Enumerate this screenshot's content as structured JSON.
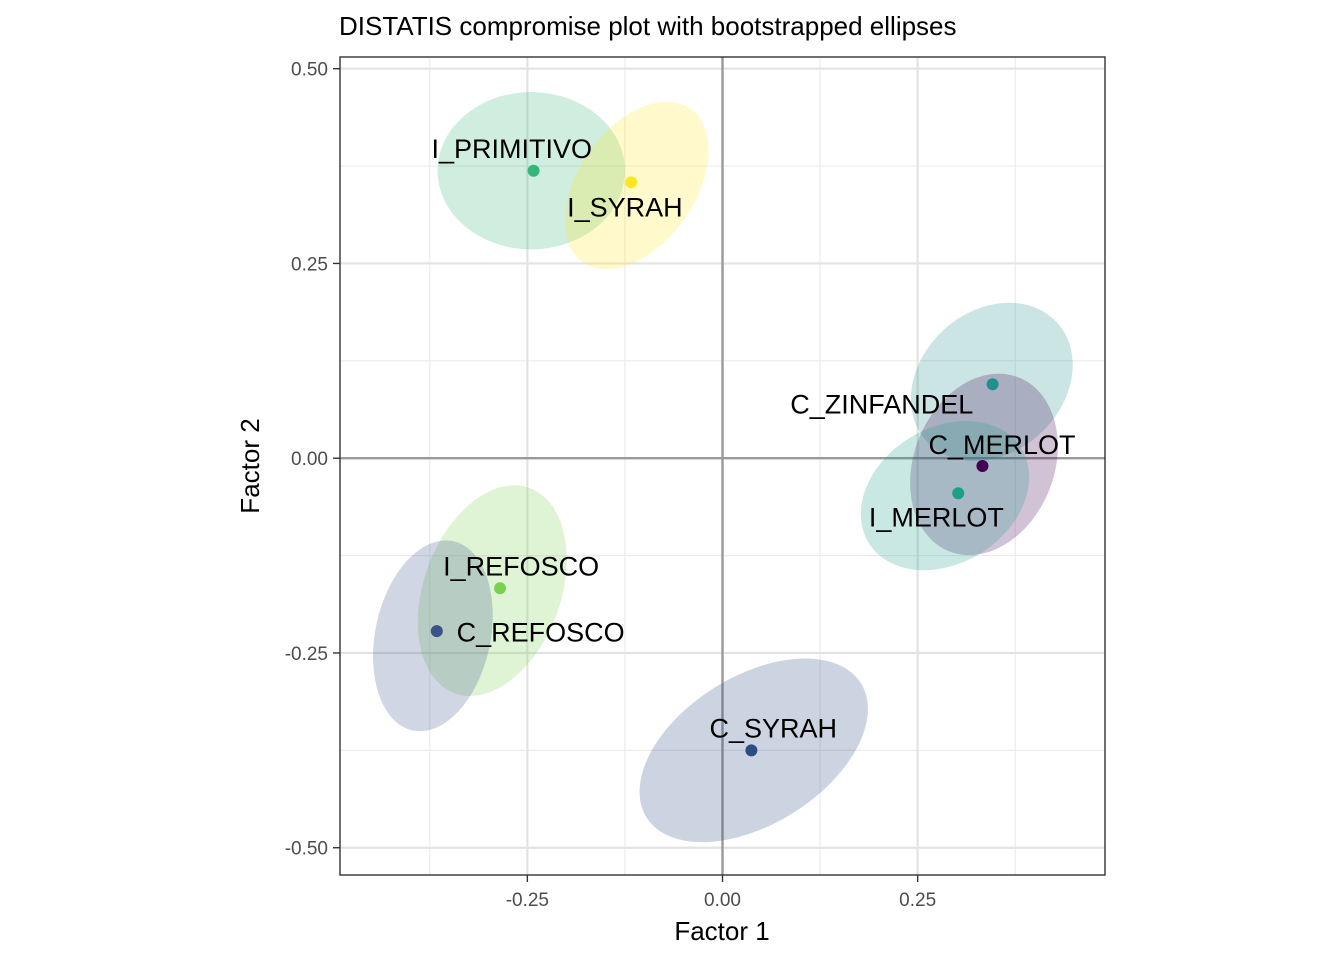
{
  "chart_data": {
    "type": "scatter",
    "title": "DISTATIS compromise plot with bootstrapped ellipses",
    "xlabel": "Factor 1",
    "ylabel": "Factor 2",
    "xlim": [
      -0.49,
      0.49
    ],
    "ylim": [
      -0.535,
      0.515
    ],
    "xticks": [
      -0.25,
      0.0,
      0.25
    ],
    "xtick_labels": [
      "-0.25",
      "0.00",
      "0.25"
    ],
    "yticks": [
      -0.5,
      -0.25,
      0.0,
      0.25,
      0.5
    ],
    "ytick_labels": [
      "-0.50",
      "-0.25",
      "0.00",
      "0.25",
      "0.50"
    ],
    "grid": true,
    "legend": "none",
    "points": [
      {
        "label": "I_PRIMITIVO",
        "x": -0.242,
        "y": 0.369,
        "color": "#35b779",
        "ellipse": {
          "cx": -0.245,
          "cy": 0.369,
          "rx": 0.12,
          "ry": 0.101,
          "angle": 0
        },
        "label_dx": -0.028,
        "label_dy": 0.028
      },
      {
        "label": "I_SYRAH",
        "x": -0.117,
        "y": 0.354,
        "color": "#fde725",
        "ellipse": {
          "cx": -0.11,
          "cy": 0.35,
          "rx": 0.12,
          "ry": 0.075,
          "angle": -55
        },
        "label_dx": -0.008,
        "label_dy": -0.032
      },
      {
        "label": "C_ZINFANDEL",
        "x": 0.346,
        "y": 0.095,
        "color": "#21918c",
        "ellipse": {
          "cx": 0.345,
          "cy": 0.098,
          "rx": 0.113,
          "ry": 0.091,
          "angle": -42
        },
        "label_dx": -0.142,
        "label_dy": -0.026
      },
      {
        "label": "C_MERLOT",
        "x": 0.333,
        "y": -0.01,
        "color": "#440154",
        "ellipse": {
          "cx": 0.335,
          "cy": -0.008,
          "rx": 0.12,
          "ry": 0.09,
          "angle": -68
        },
        "label_dx": 0.025,
        "label_dy": 0.027
      },
      {
        "label": "I_MERLOT",
        "x": 0.302,
        "y": -0.045,
        "color": "#1f9e89",
        "ellipse": {
          "cx": 0.285,
          "cy": -0.048,
          "rx": 0.115,
          "ry": 0.087,
          "angle": -32
        },
        "label_dx": -0.028,
        "label_dy": -0.031
      },
      {
        "label": "I_REFOSCO",
        "x": -0.285,
        "y": -0.167,
        "color": "#7ad151",
        "ellipse": {
          "cx": -0.295,
          "cy": -0.17,
          "rx": 0.14,
          "ry": 0.088,
          "angle": -70
        },
        "label_dx": 0.027,
        "label_dy": 0.028
      },
      {
        "label": "C_REFOSCO",
        "x": -0.366,
        "y": -0.222,
        "color": "#3b528b",
        "ellipse": {
          "cx": -0.371,
          "cy": -0.228,
          "rx": 0.124,
          "ry": 0.074,
          "angle": -78
        },
        "label_dx": 0.133,
        "label_dy": -0.002
      },
      {
        "label": "C_SYRAH",
        "x": 0.037,
        "y": -0.375,
        "color": "#2c4c83",
        "ellipse": {
          "cx": 0.04,
          "cy": -0.375,
          "rx": 0.162,
          "ry": 0.095,
          "angle": -32
        },
        "label_dx": 0.028,
        "label_dy": 0.028
      }
    ]
  }
}
